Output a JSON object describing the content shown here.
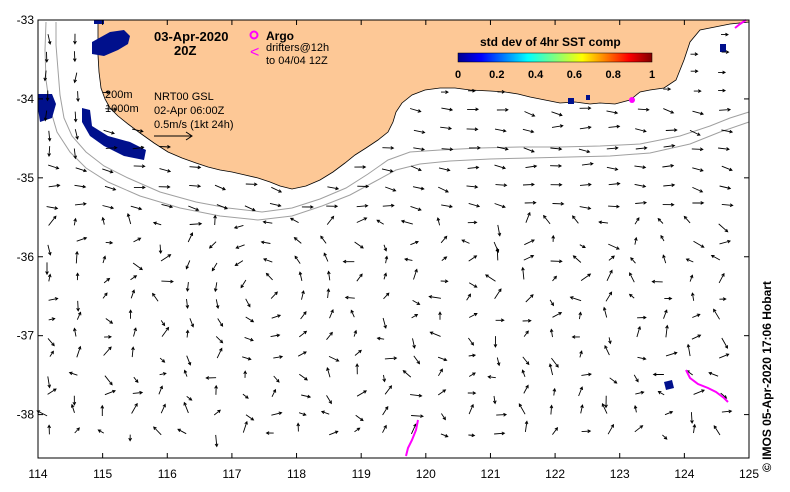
{
  "title": {
    "date": "03-Apr-2020",
    "time": "20Z"
  },
  "legend": {
    "argo_label": "Argo",
    "drifters_label": "drifters@12h",
    "drifters_until": "to 04/04 12Z",
    "argo_color": "#ff00ff",
    "drifter_color": "#ff00ff"
  },
  "colorbar": {
    "title": "std dev of 4hr SST comp",
    "ticks": [
      "0",
      "0.2",
      "0.4",
      "0.6",
      "0.8",
      "1"
    ],
    "range": [
      0,
      1
    ],
    "colormap": "jet"
  },
  "annotations": {
    "depth_200": "200m",
    "depth_1000": "1000m",
    "product": "NRT00 GSL",
    "product_time": "02-Apr 06:00Z",
    "scale": "0.5m/s (1kt 24h)"
  },
  "credit": "© IMOS 05-Apr-2020 17:06 Hobart",
  "colors": {
    "land": "#fdc896",
    "isobath": "#a0a0a0",
    "arrow": "#000000",
    "sst_low": "#00008b"
  },
  "axes": {
    "x_ticks": [
      "114",
      "115",
      "116",
      "117",
      "118",
      "119",
      "120",
      "121",
      "122",
      "123",
      "124",
      "125"
    ],
    "y_ticks": [
      "-33",
      "-34",
      "-35",
      "-36",
      "-37",
      "-38"
    ],
    "lon_range": [
      114,
      125
    ],
    "lat_range": [
      -38.55,
      -33
    ]
  }
}
